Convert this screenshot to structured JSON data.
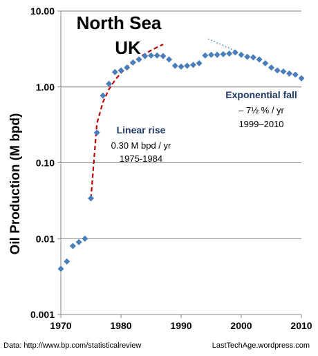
{
  "chart_data": {
    "type": "scatter",
    "title": [
      "North Sea",
      "UK"
    ],
    "ylabel": "Oil Production (M bpd)",
    "xlabel": "",
    "xlim": [
      1970,
      2010
    ],
    "ylim": [
      0.001,
      10
    ],
    "yscale": "log",
    "grid": "horizontal",
    "x_ticks": [
      "1970",
      "1980",
      "1990",
      "2000",
      "2010"
    ],
    "y_ticks": [
      "0.001",
      "0.01",
      "0.10",
      "1.00",
      "10.00"
    ],
    "marker_color": "#4a7ebb",
    "series": [
      {
        "x": [
          1970,
          1971,
          1972,
          1973,
          1974,
          1975,
          1976,
          1977,
          1978,
          1979,
          1980,
          1981,
          1982,
          1983,
          1984,
          1985,
          1986,
          1987,
          1988,
          1989,
          1990,
          1991,
          1992,
          1993,
          1994,
          1995,
          1996,
          1997,
          1998,
          1999,
          2000,
          2001,
          2002,
          2003,
          2004,
          2005,
          2006,
          2007,
          2008,
          2009,
          2010
        ],
        "y": [
          0.004,
          0.005,
          0.008,
          0.009,
          0.01,
          0.034,
          0.25,
          0.77,
          1.1,
          1.57,
          1.65,
          1.8,
          2.1,
          2.3,
          2.55,
          2.6,
          2.6,
          2.55,
          2.3,
          1.9,
          1.85,
          1.9,
          1.95,
          2.05,
          2.6,
          2.65,
          2.65,
          2.7,
          2.75,
          2.85,
          2.65,
          2.5,
          2.45,
          2.3,
          2.05,
          1.8,
          1.65,
          1.6,
          1.5,
          1.45,
          1.3
        ]
      }
    ],
    "trend_lines": [
      {
        "style": "dashed",
        "color": "#c00000",
        "x": [
          1975,
          1976,
          1977,
          1978,
          1979,
          1980,
          1981,
          1982,
          1983,
          1984,
          1985,
          1986,
          1987
        ],
        "y": [
          0.034,
          0.33,
          0.63,
          0.93,
          1.23,
          1.53,
          1.83,
          2.13,
          2.43,
          2.73,
          3.03,
          3.33,
          3.63
        ]
      },
      {
        "style": "dotted",
        "color": "#4a7ebb",
        "x": [
          1994.5,
          1999
        ],
        "y": [
          4.3,
          3.0
        ]
      }
    ],
    "annotations": [
      {
        "head": "Linear rise",
        "lines": [
          "0.30 M bpd / yr",
          "1975-1984"
        ]
      },
      {
        "head": "Exponential fall",
        "lines": [
          "– 7½ % / yr",
          "1999–2010"
        ]
      }
    ],
    "footer": {
      "left": "Data:  http://www.bp.com/statisticalreview",
      "right": "LastTechAge.wordpress.com"
    }
  }
}
